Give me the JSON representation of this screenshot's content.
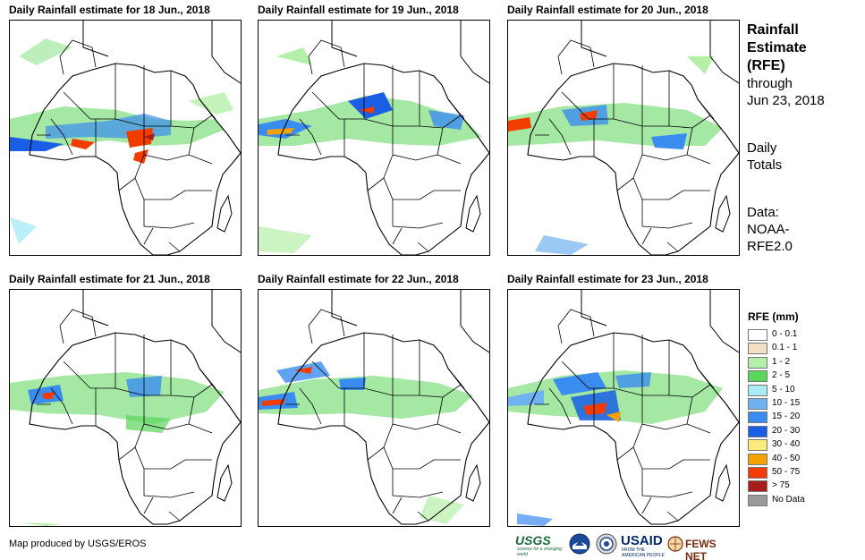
{
  "panels": [
    {
      "title": "Daily Rainfall estimate for 18 Jun., 2018"
    },
    {
      "title": "Daily Rainfall estimate for 19 Jun., 2018"
    },
    {
      "title": "Daily Rainfall estimate for 20 Jun., 2018"
    },
    {
      "title": "Daily Rainfall estimate for 21 Jun., 2018"
    },
    {
      "title": "Daily Rainfall estimate for 22 Jun., 2018"
    },
    {
      "title": "Daily Rainfall estimate for 23 Jun., 2018"
    }
  ],
  "side": {
    "title_line1": "Rainfall",
    "title_line2": "Estimate",
    "title_line3": "(RFE)",
    "through": "through",
    "date": "Jun 23, 2018",
    "daily1": "Daily",
    "daily2": "Totals",
    "data1": "Data:",
    "data2": "NOAA-",
    "data3": "RFE2.0"
  },
  "legend": {
    "title": "RFE (mm)",
    "items": [
      {
        "label": "0 - 0.1",
        "color": "#ffffff"
      },
      {
        "label": "0.1 - 1",
        "color": "#f2dfc4"
      },
      {
        "label": "1 - 2",
        "color": "#b5f0a8"
      },
      {
        "label": "2 - 5",
        "color": "#5ad65a"
      },
      {
        "label": "5 - 10",
        "color": "#a8ecf5"
      },
      {
        "label": "10 - 15",
        "color": "#6fb2f2"
      },
      {
        "label": "15 - 20",
        "color": "#3a8cf0"
      },
      {
        "label": "20 - 30",
        "color": "#1a5ee6"
      },
      {
        "label": "30 - 40",
        "color": "#fcea7a"
      },
      {
        "label": "40 - 50",
        "color": "#f5a300"
      },
      {
        "label": "50 - 75",
        "color": "#f23c00"
      },
      {
        "label": "> 75",
        "color": "#a81c1c"
      },
      {
        "label": "No Data",
        "color": "#9a9a9a"
      }
    ]
  },
  "credit": "Map produced by USGS/EROS",
  "logos": {
    "usgs": "USGS",
    "usgs_tag": "science for a changing world",
    "noaa_icon": "noaa-icon",
    "dod_icon": "agency-seal-icon",
    "usaid": "USAID",
    "usaid_tag": "FROM THE AMERICAN PEOPLE",
    "fews": "FEWS NET"
  }
}
